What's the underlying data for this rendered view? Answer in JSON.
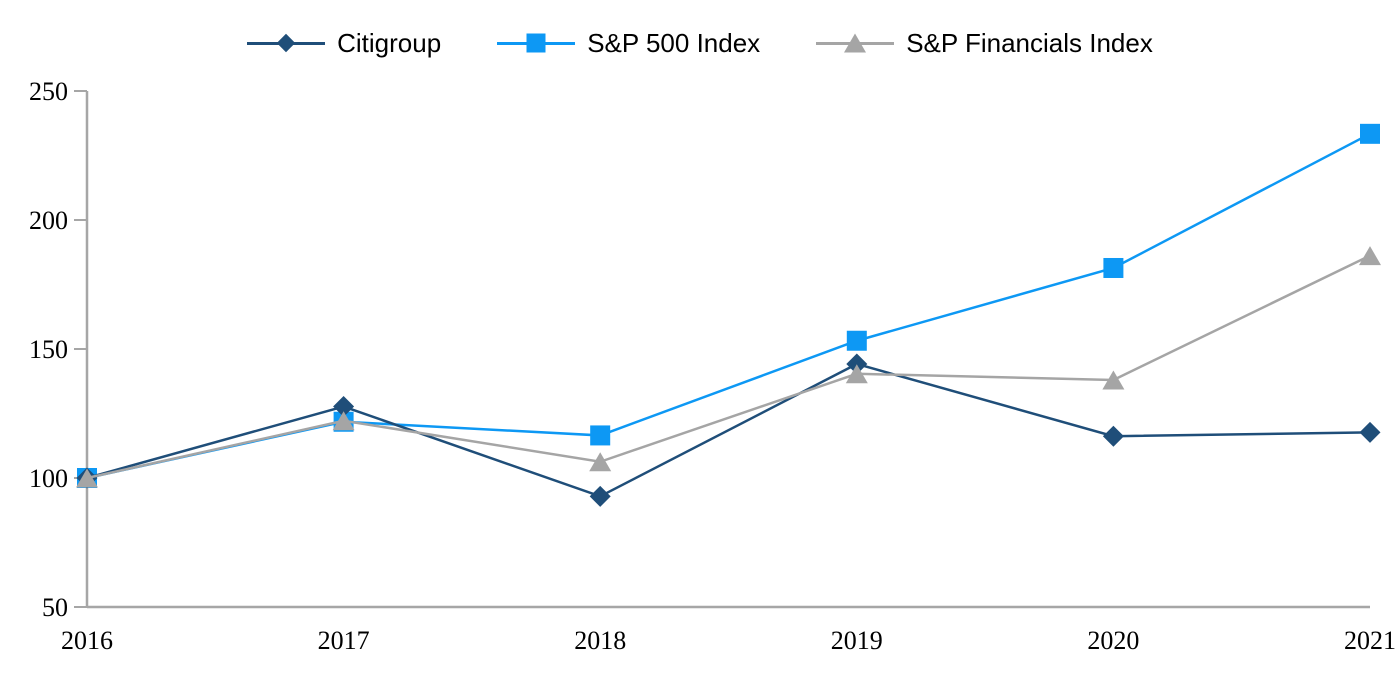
{
  "chart_data": {
    "type": "line",
    "title": "",
    "xlabel": "",
    "ylabel": "",
    "categories": [
      "2016",
      "2017",
      "2018",
      "2019",
      "2020",
      "2021"
    ],
    "series": [
      {
        "name": "Citigroup",
        "color": "#1F4E79",
        "marker": "diamond",
        "z": 2,
        "values": [
          100.0,
          127.7,
          92.9,
          144.2,
          116.2,
          117.7
        ]
      },
      {
        "name": "S&P 500 Index",
        "color": "#0D98F4",
        "marker": "square",
        "z": 1,
        "values": [
          100.0,
          121.8,
          116.5,
          153.2,
          181.4,
          233.4
        ]
      },
      {
        "name": "S&P Financials Index",
        "color": "#A5A5A5",
        "marker": "triangle",
        "z": 3,
        "values": [
          100.0,
          122.2,
          106.3,
          140.4,
          138.0,
          186.2
        ]
      }
    ],
    "ylim": [
      50,
      250
    ],
    "yticks": [
      50,
      100,
      150,
      200,
      250
    ],
    "grid": false,
    "legend_position": "top",
    "axis_color": "#A6A6A6",
    "background": "#FFFFFF"
  }
}
